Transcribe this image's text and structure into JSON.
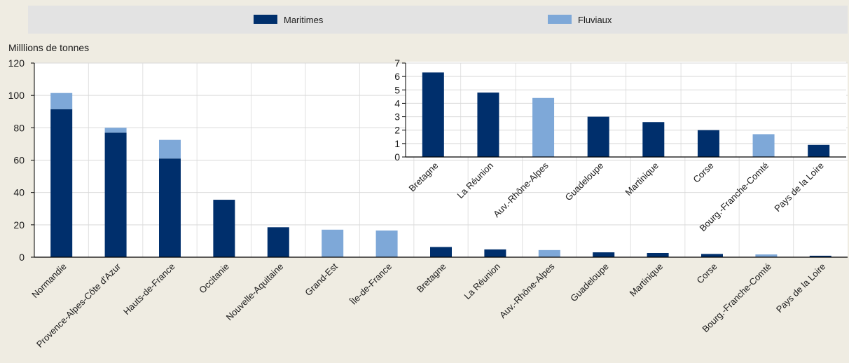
{
  "colors": {
    "background": "#efece2",
    "legend_band": "#e3e3e3",
    "plot_area": "#ffffff",
    "maritime": "#002f6c",
    "fluvial": "#7ea8d8",
    "axis": "#000000",
    "grid": "#ffffff"
  },
  "chart_data": [
    {
      "type": "bar",
      "stacked": true,
      "unit_label": "Milllions de tonnes",
      "ylim": [
        0,
        120
      ],
      "yticks": [
        0,
        20,
        40,
        60,
        80,
        100,
        120
      ],
      "legend": {
        "placement": "top",
        "entries": [
          "Maritimes",
          "Fluviaux"
        ]
      },
      "categories": [
        "Normandie",
        "Provence-Alpes-Côte d'Azur",
        "Hauts-de-France",
        "Occitanie",
        "Nouvelle-Aquitaine",
        "Grand-Est",
        "Île-de-France",
        "Bretagne",
        "La Réunion",
        "Auv.-Rhône-Alpes",
        "Guadeloupe",
        "Martinique",
        "Corse",
        "Bourg.-Franche-Comté",
        "Pays de la Loire"
      ],
      "series": [
        {
          "name": "Maritimes",
          "values": [
            91.5,
            77,
            61,
            35.5,
            18.5,
            0,
            0,
            6.3,
            4.8,
            0,
            3.0,
            2.6,
            2.0,
            0,
            0.9
          ]
        },
        {
          "name": "Fluviaux",
          "values": [
            10,
            3,
            11.5,
            0,
            0,
            17,
            16.5,
            0,
            0,
            4.4,
            0,
            0,
            0,
            1.7,
            0
          ]
        }
      ]
    },
    {
      "type": "bar",
      "stacked": true,
      "inset": true,
      "ylim": [
        0,
        7
      ],
      "yticks": [
        0,
        1,
        2,
        3,
        4,
        5,
        6,
        7
      ],
      "categories": [
        "Bretagne",
        "La Réunion",
        "Auv.-Rhône-Alpes",
        "Guadeloupe",
        "Martinique",
        "Corse",
        "Bourg.-Franche-Comté",
        "Pays de la Loire"
      ],
      "series": [
        {
          "name": "Maritimes",
          "values": [
            6.3,
            4.8,
            0,
            3.0,
            2.6,
            2.0,
            0,
            0.9
          ]
        },
        {
          "name": "Fluviaux",
          "values": [
            0,
            0,
            4.4,
            0,
            0,
            0,
            1.7,
            0
          ]
        }
      ]
    }
  ]
}
